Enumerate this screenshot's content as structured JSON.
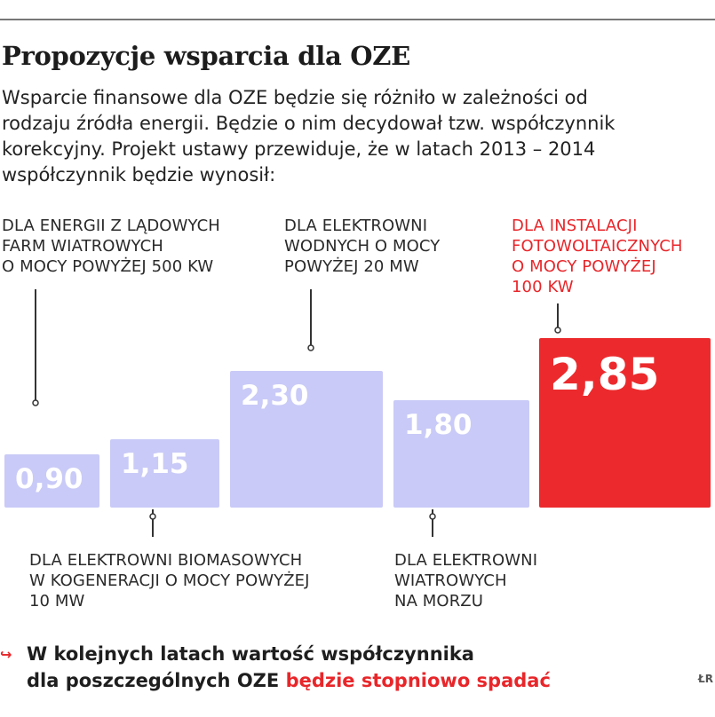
{
  "title": "Propozycje wsparcia dla OZE",
  "intro": [
    "Wsparcie finansowe dla OZE będzie się różniło w zależności od",
    "rodzaju źródła energii. Będzie o nim decydował tzw. współczynnik",
    "korekcyjny. Projekt ustawy przewiduje, że w latach 2013 – 2014",
    "współczynnik będzie wynosił:"
  ],
  "labels": {
    "l1": [
      "DLA ENERGII Z LĄDOWYCH",
      "FARM WIATROWYCH",
      "O MOCY POWYŻEJ 500 KW"
    ],
    "l2": [
      "DLA ELEKTROWNI BIOMASOWYCH",
      "W KOGENERACJI O MOCY POWYŻEJ",
      "10 MW"
    ],
    "l3": [
      "DLA ELEKTROWNI",
      "WODNYCH O MOCY",
      "POWYŻEJ 20 MW"
    ],
    "l4": [
      "DLA ELEKTROWNI",
      "WIATROWYCH",
      "NA MORZU"
    ],
    "l5": [
      "DLA INSTALACJI",
      "FOTOWOLTAICZNYCH",
      "O MOCY POWYŻEJ",
      "100 KW"
    ]
  },
  "chart_data": {
    "type": "bar",
    "categories": [
      "DLA ENERGII Z LĄDOWYCH FARM WIATROWYCH O MOCY POWYŻEJ 500 KW",
      "DLA ELEKTROWNI BIOMASOWYCH W KOGENERACJI O MOCY POWYŻEJ 10 MW",
      "DLA ELEKTROWNI WODNYCH O MOCY POWYŻEJ 20 MW",
      "DLA ELEKTROWNI WIATROWYCH NA MORZU",
      "DLA INSTALACJI FOTOWOLTAICZNYCH O MOCY POWYŻEJ 100 KW"
    ],
    "values": [
      0.9,
      1.15,
      2.3,
      1.8,
      2.85
    ],
    "value_labels": [
      "0,90",
      "1,15",
      "2,30",
      "1,80",
      "2,85"
    ],
    "highlight_index": 4,
    "colors": {
      "bar": "#c9caf7",
      "highlight": "#ec2a2d",
      "value_text": "#ffffff",
      "leader": "#333333"
    },
    "grid": false,
    "title": "",
    "xlabel": "",
    "ylabel": ""
  },
  "footnote": {
    "marker": "↪",
    "line1": "W kolejnych latach wartość współczynnika",
    "line2_prefix": "dla poszczególnych OZE ",
    "line2_emph": "będzie stopniowo spadać"
  },
  "source": "ŁR"
}
